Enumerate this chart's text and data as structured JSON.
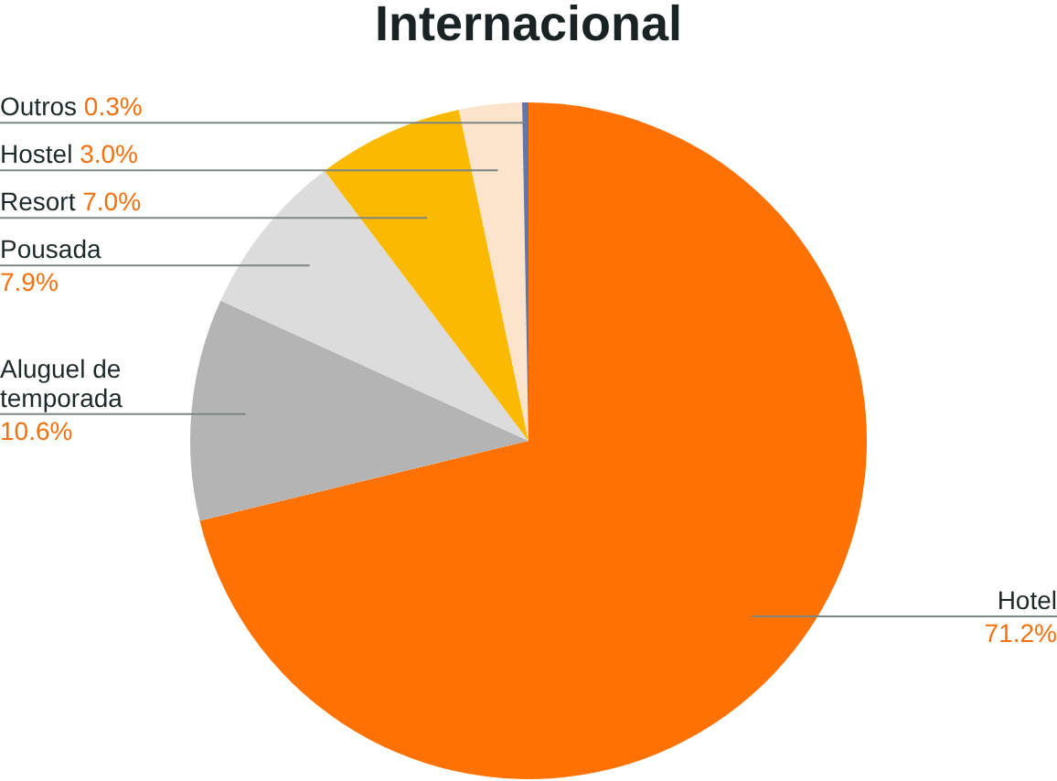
{
  "chart_data": {
    "type": "pie",
    "title": "Internacional",
    "categories": [
      "Hotel",
      "Aluguel de temporada",
      "Pousada",
      "Resort",
      "Hostel",
      "Outros"
    ],
    "values": [
      71.2,
      10.6,
      7.9,
      7.0,
      3.0,
      0.3
    ],
    "colors": [
      "#ff7100",
      "#b4b4b4",
      "#dcdcdc",
      "#fbb900",
      "#fce3cb",
      "#6276aa"
    ],
    "value_labels": [
      "71.2%",
      "10.6%",
      "7.9%",
      "7.0%",
      "3.0%",
      "0.3%"
    ]
  }
}
